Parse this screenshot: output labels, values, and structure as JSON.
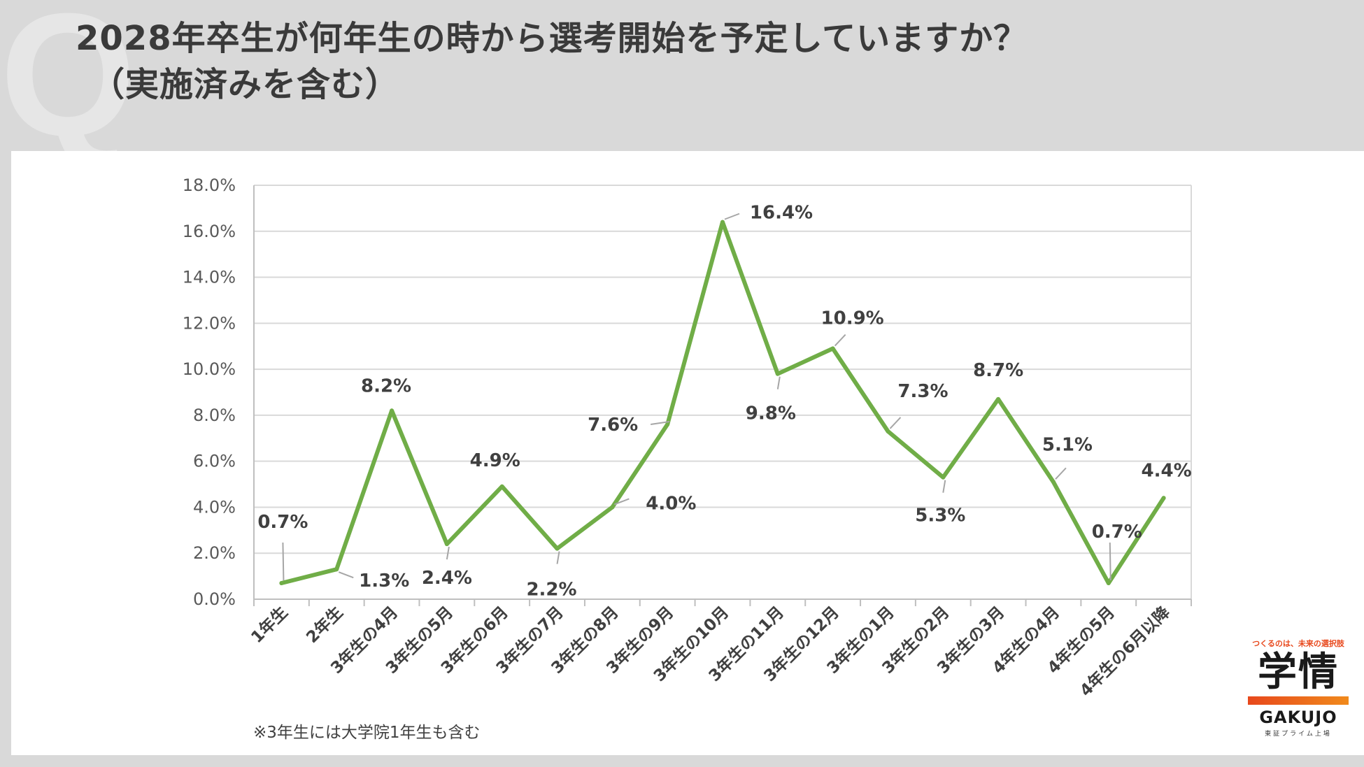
{
  "title": {
    "line1": "2028年卒生が何年生の時から選考開始を予定していますか？",
    "line2": "（実施済みを含む）",
    "watermark": "Q"
  },
  "footnote": "※3年生には大学院1年生も含む",
  "logo": {
    "tagline": "つくるのは、未来の選択肢",
    "name": "学情",
    "brand": "GAKUJO",
    "sub": "東証プライム上場",
    "colors": [
      "#e8481c",
      "#f08a1c"
    ]
  },
  "chart_data": {
    "type": "line",
    "title": "",
    "xlabel": "",
    "ylabel": "",
    "ylim": [
      0,
      18
    ],
    "yticks": [
      "0.0%",
      "2.0%",
      "4.0%",
      "6.0%",
      "8.0%",
      "10.0%",
      "12.0%",
      "14.0%",
      "16.0%",
      "18.0%"
    ],
    "grid": true,
    "legend": "none",
    "line_color": "#70ad47",
    "categories": [
      "1年生",
      "2年生",
      "3年生の4月",
      "3年生の5月",
      "3年生の6月",
      "3年生の7月",
      "3年生の8月",
      "3年生の9月",
      "3年生の10月",
      "3年生の11月",
      "3年生の12月",
      "3年生の1月",
      "3年生の2月",
      "3年生の3月",
      "4年生の4月",
      "4年生の5月",
      "4年生の6月以降"
    ],
    "series": [
      {
        "values": [
          0.7,
          1.3,
          8.2,
          2.4,
          4.9,
          2.2,
          4.0,
          7.6,
          16.4,
          9.8,
          10.9,
          7.3,
          5.3,
          8.7,
          5.1,
          0.7,
          4.4
        ],
        "labels": [
          "0.7%",
          "1.3%",
          "8.2%",
          "2.4%",
          "4.9%",
          "2.2%",
          "4.0%",
          "7.6%",
          "16.4%",
          "9.8%",
          "10.9%",
          "7.3%",
          "5.3%",
          "8.7%",
          "5.1%",
          "0.7%",
          "4.4%"
        ]
      }
    ]
  }
}
